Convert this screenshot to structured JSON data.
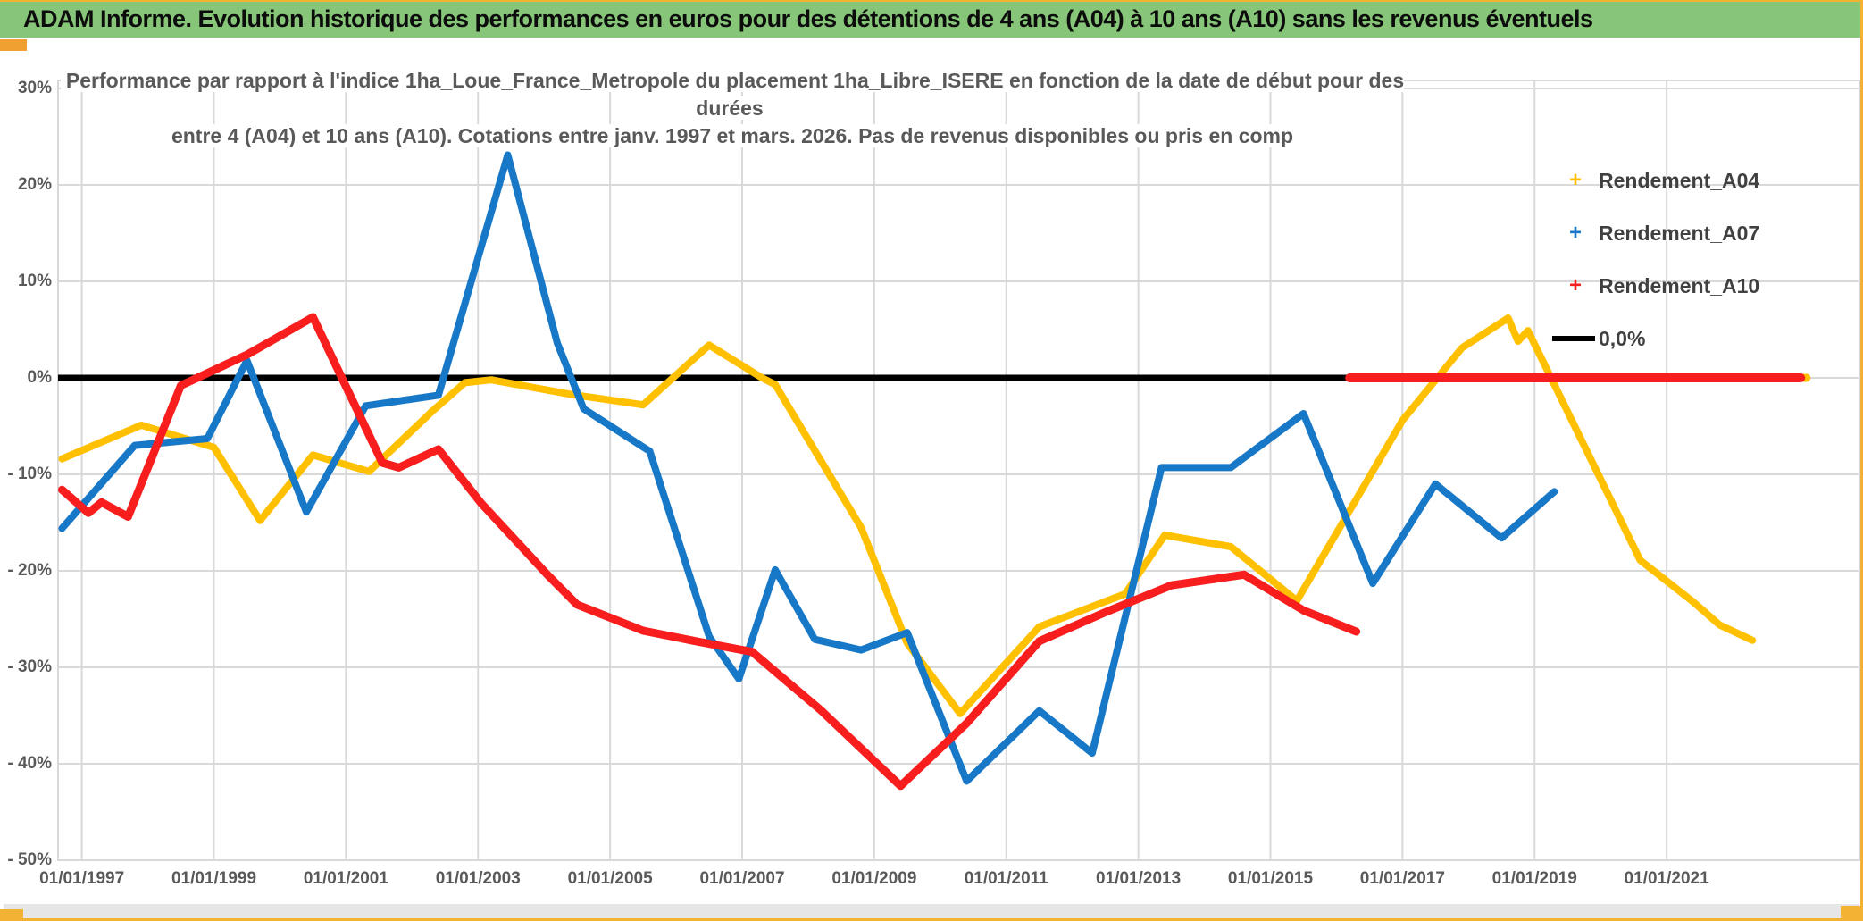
{
  "header": {
    "title": "ADAM Informe. Evolution historique des performances en euros pour des détentions de 4 ans (A04) à 10 ans (A10) sans les revenus éventuels"
  },
  "chart_data": {
    "type": "line",
    "title_lines": [
      "Performance par rapport à l'indice 1ha_Loue_France_Metropole  du placement 1ha_Libre_ISERE en fonction de la date de début pour des durées",
      "entre 4 (A04) et 10 ans (A10). Cotations entre janv. 1997 et mars. 2026. Pas de revenus disponibles ou pris en comp"
    ],
    "xlabel": "",
    "ylabel": "",
    "x_domain": [
      1996.64,
      2023.92
    ],
    "ylim": [
      -50,
      30.85
    ],
    "grid": true,
    "legend_position": "right",
    "y_ticks": [
      {
        "label": "30%",
        "value": 30
      },
      {
        "label": "20%",
        "value": 20
      },
      {
        "label": "10%",
        "value": 10
      },
      {
        "label": "0%",
        "value": 0
      },
      {
        "label": "- 10%",
        "value": -10
      },
      {
        "label": "- 20%",
        "value": -20
      },
      {
        "label": "- 30%",
        "value": -30
      },
      {
        "label": "- 40%",
        "value": -40
      },
      {
        "label": "- 50%",
        "value": -50
      }
    ],
    "x_ticks": [
      {
        "label": "01/01/1997",
        "year": 1997
      },
      {
        "label": "01/01/1999",
        "year": 1999
      },
      {
        "label": "01/01/2001",
        "year": 2001
      },
      {
        "label": "01/01/2003",
        "year": 2003
      },
      {
        "label": "01/01/2005",
        "year": 2005
      },
      {
        "label": "01/01/2007",
        "year": 2007
      },
      {
        "label": "01/01/2009",
        "year": 2009
      },
      {
        "label": "01/01/2011",
        "year": 2011
      },
      {
        "label": "01/01/2013",
        "year": 2013
      },
      {
        "label": "01/01/2015",
        "year": 2015
      },
      {
        "label": "01/01/2017",
        "year": 2017
      },
      {
        "label": "01/01/2019",
        "year": 2019
      },
      {
        "label": "01/01/2021",
        "year": 2021
      }
    ],
    "zero_line": {
      "label": "0,0%",
      "color": "#000000",
      "value": 0,
      "from_year": 1996.64,
      "black_until_year": 2016.2
    },
    "series": [
      {
        "name": "Rendement_A04",
        "color": "#FFC000",
        "marker": "+",
        "stroke_width": 8,
        "points": [
          [
            1996.7,
            -8.4
          ],
          [
            1997.9,
            -4.9
          ],
          [
            1999.0,
            -7.2
          ],
          [
            1999.7,
            -14.8
          ],
          [
            2000.5,
            -8.0
          ],
          [
            2001.35,
            -9.7
          ],
          [
            2002.3,
            -3.5
          ],
          [
            2002.8,
            -0.5
          ],
          [
            2003.2,
            -0.2
          ],
          [
            2004.4,
            -1.7
          ],
          [
            2005.5,
            -2.8
          ],
          [
            2006.0,
            0.3
          ],
          [
            2006.5,
            3.4
          ],
          [
            2007.3,
            0.0
          ],
          [
            2007.5,
            -0.7
          ],
          [
            2008.8,
            -15.5
          ],
          [
            2009.5,
            -27.5
          ],
          [
            2010.3,
            -34.8
          ],
          [
            2011.5,
            -25.8
          ],
          [
            2012.8,
            -22.4
          ],
          [
            2013.4,
            -16.3
          ],
          [
            2014.4,
            -17.5
          ],
          [
            2015.4,
            -23.1
          ],
          [
            2017.0,
            -4.4
          ],
          [
            2017.9,
            3.1
          ],
          [
            2018.6,
            6.2
          ],
          [
            2018.75,
            3.8
          ],
          [
            2018.9,
            4.9
          ],
          [
            2020.0,
            -10.5
          ],
          [
            2020.6,
            -18.9
          ],
          [
            2021.4,
            -23.2
          ],
          [
            2021.8,
            -25.6
          ],
          [
            2022.3,
            -27.2
          ]
        ],
        "zero_run": {
          "from": 2022.3,
          "to": 2023.12
        }
      },
      {
        "name": "Rendement_A07",
        "color": "#1878C8",
        "marker": "+",
        "stroke_width": 8,
        "points": [
          [
            1996.7,
            -15.6
          ],
          [
            1997.8,
            -7.0
          ],
          [
            1998.9,
            -6.3
          ],
          [
            1999.5,
            1.8
          ],
          [
            2000.4,
            -13.9
          ],
          [
            2001.3,
            -2.9
          ],
          [
            2002.4,
            -1.8
          ],
          [
            2003.45,
            23.1
          ],
          [
            2004.2,
            3.6
          ],
          [
            2004.6,
            -3.2
          ],
          [
            2005.6,
            -7.6
          ],
          [
            2006.5,
            -26.8
          ],
          [
            2006.95,
            -31.2
          ],
          [
            2007.5,
            -19.9
          ],
          [
            2008.1,
            -27.1
          ],
          [
            2008.8,
            -28.2
          ],
          [
            2009.5,
            -26.4
          ],
          [
            2010.4,
            -41.8
          ],
          [
            2011.5,
            -34.5
          ],
          [
            2012.3,
            -38.9
          ],
          [
            2013.35,
            -9.3
          ],
          [
            2014.4,
            -9.3
          ],
          [
            2015.5,
            -3.7
          ],
          [
            2016.55,
            -21.3
          ],
          [
            2017.5,
            -11.0
          ],
          [
            2018.5,
            -16.6
          ],
          [
            2019.3,
            -11.8
          ]
        ],
        "zero_run": null
      },
      {
        "name": "Rendement_A10",
        "color": "#F81E1E",
        "marker": "+",
        "stroke_width": 9,
        "points": [
          [
            1996.7,
            -11.6
          ],
          [
            1997.1,
            -14.0
          ],
          [
            1997.3,
            -12.9
          ],
          [
            1997.7,
            -14.4
          ],
          [
            1998.5,
            -0.8
          ],
          [
            1999.5,
            2.4
          ],
          [
            2000.5,
            6.3
          ],
          [
            2001.55,
            -8.8
          ],
          [
            2001.8,
            -9.3
          ],
          [
            2002.4,
            -7.4
          ],
          [
            2003.05,
            -13.0
          ],
          [
            2004.05,
            -20.4
          ],
          [
            2004.5,
            -23.5
          ],
          [
            2005.5,
            -26.2
          ],
          [
            2006.3,
            -27.3
          ],
          [
            2007.15,
            -28.4
          ],
          [
            2008.2,
            -34.5
          ],
          [
            2009.4,
            -42.3
          ],
          [
            2010.4,
            -35.8
          ],
          [
            2011.5,
            -27.3
          ],
          [
            2012.5,
            -24.3
          ],
          [
            2013.5,
            -21.5
          ],
          [
            2014.6,
            -20.4
          ],
          [
            2015.5,
            -24.1
          ],
          [
            2016.3,
            -26.3
          ]
        ],
        "zero_run": {
          "from": 2016.2,
          "to": 2023.03
        }
      }
    ],
    "legend": [
      {
        "label": "Rendement_A04",
        "marker": "+",
        "color": "#FFC000"
      },
      {
        "label": "Rendement_A07",
        "marker": "+",
        "color": "#1878C8"
      },
      {
        "label": "Rendement_A10",
        "marker": "+",
        "color": "#F81E1E"
      },
      {
        "label": "0,0%",
        "marker": "line",
        "color": "#000000"
      }
    ],
    "colors": {
      "grid": "#D9D9D9",
      "plot_border": "#D9D9D9",
      "axis_text": "#595959",
      "title_bar_bg": "#87C679",
      "accent_gold": "#F2B234"
    }
  }
}
